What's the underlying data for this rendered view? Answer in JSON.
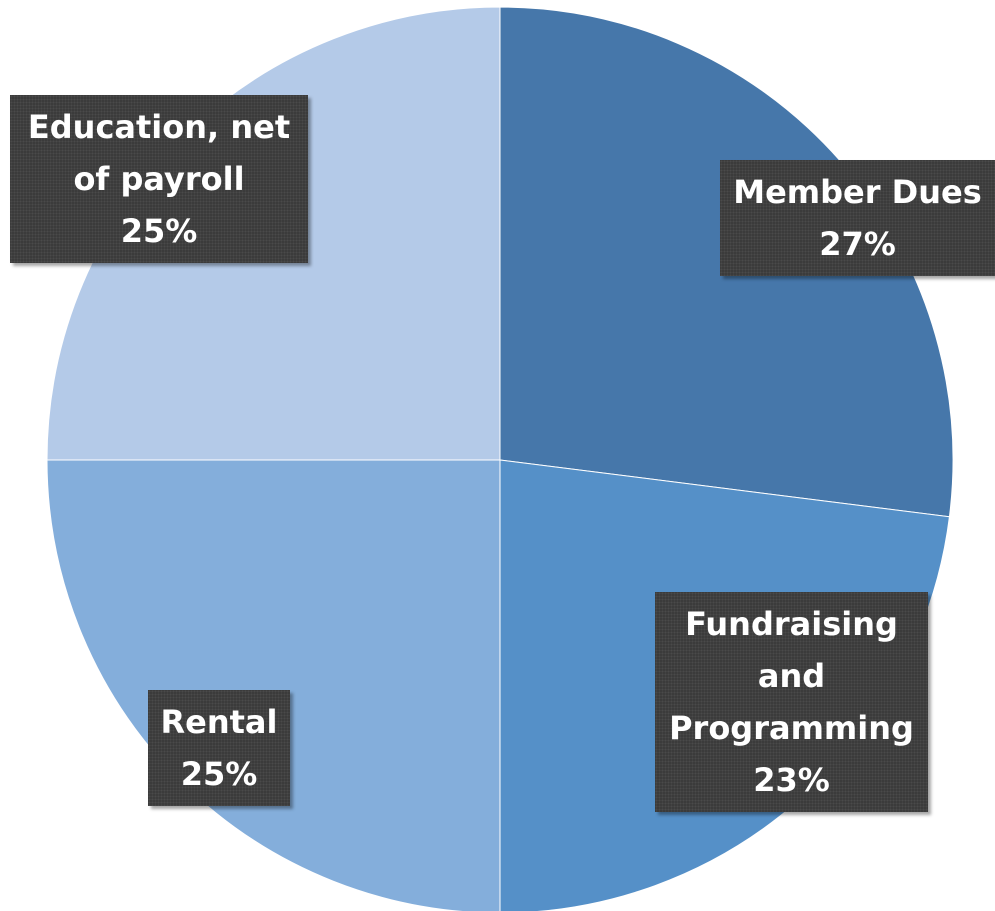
{
  "chart_data": {
    "type": "pie",
    "categories": [
      "Member Dues",
      "Fundraising and Programming",
      "Rental",
      "Education, net of payroll"
    ],
    "values": [
      27,
      23,
      25,
      25
    ],
    "value_labels": [
      "27%",
      "23%",
      "25%",
      "25%"
    ],
    "colors": [
      "#4677aa",
      "#5590c8",
      "#84aedb",
      "#b4cae8"
    ]
  }
}
